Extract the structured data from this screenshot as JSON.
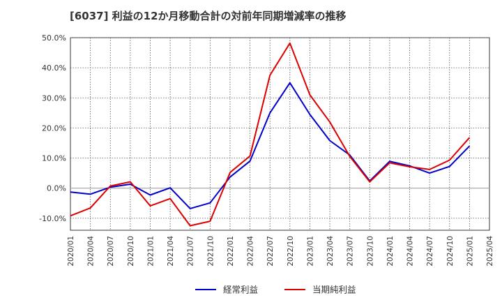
{
  "title": "[6037]  利益の12か月移動合計の対前年同期増減率の推移",
  "chart_data": {
    "type": "line",
    "title": "[6037]  利益の12か月移動合計の対前年同期増減率の推移",
    "xlabel": "",
    "ylabel": "",
    "ylim": [
      -14,
      50
    ],
    "yticks": [
      -10,
      0,
      10,
      20,
      30,
      40,
      50
    ],
    "ytick_labels": [
      "-10.0%",
      "0.0%",
      "10.0%",
      "20.0%",
      "30.0%",
      "40.0%",
      "50.0%"
    ],
    "categories": [
      "2020/01",
      "2020/04",
      "2020/07",
      "2020/10",
      "2021/01",
      "2021/04",
      "2021/07",
      "2021/10",
      "2022/01",
      "2022/04",
      "2022/07",
      "2022/10",
      "2023/01",
      "2023/04",
      "2023/07",
      "2023/10",
      "2024/01",
      "2024/04",
      "2024/07",
      "2024/10",
      "2025/01",
      "2025/04"
    ],
    "grid": true,
    "legend_position": "bottom",
    "series": [
      {
        "name": "経常利益",
        "color": "#0000cc",
        "values": [
          -1.3,
          -2.0,
          0.3,
          1.3,
          -2.3,
          0.1,
          -6.8,
          -4.9,
          3.7,
          9.0,
          25.0,
          35.0,
          24.5,
          15.8,
          11.0,
          2.4,
          8.9,
          7.4,
          5.0,
          7.2,
          14.0,
          null
        ]
      },
      {
        "name": "当期純利益",
        "color": "#dd0000",
        "values": [
          -9.2,
          -6.6,
          0.7,
          2.1,
          -5.9,
          -3.5,
          -12.5,
          -11.0,
          5.2,
          10.7,
          37.5,
          48.2,
          31.0,
          22.0,
          10.5,
          2.1,
          8.4,
          7.1,
          6.2,
          9.3,
          16.8,
          null
        ]
      }
    ]
  }
}
